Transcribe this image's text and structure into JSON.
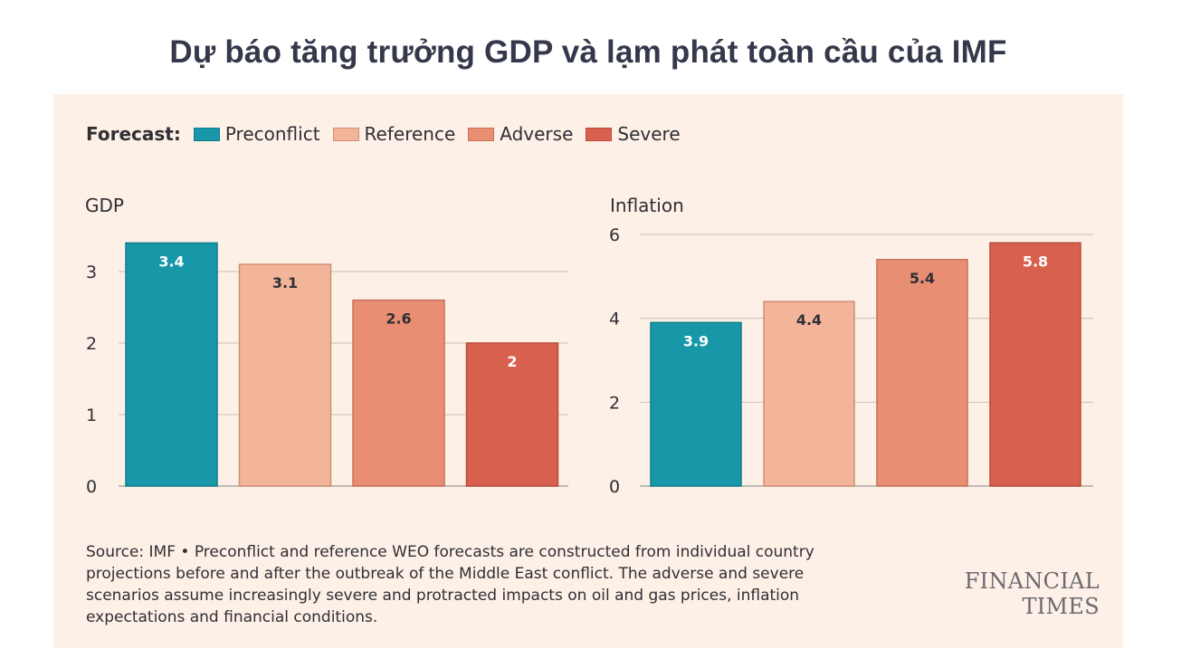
{
  "title": "Dự báo tăng trưởng GDP và lạm phát toàn cầu của IMF",
  "legend": {
    "title": "Forecast:",
    "items": [
      {
        "label": "Preconflict",
        "color": "#1897a8",
        "stroke": "#0f7f8f"
      },
      {
        "label": "Reference",
        "color": "#f2b59a",
        "stroke": "#cf8f75"
      },
      {
        "label": "Adverse",
        "color": "#e88e72",
        "stroke": "#c8705a"
      },
      {
        "label": "Severe",
        "color": "#d8604e",
        "stroke": "#b84a3a"
      }
    ]
  },
  "chart_data": [
    {
      "type": "bar",
      "title": "GDP",
      "categories": [
        "Preconflict",
        "Reference",
        "Adverse",
        "Severe"
      ],
      "values": [
        3.4,
        3.1,
        2.6,
        2
      ],
      "value_labels": [
        "3.4",
        "3.1",
        "2.6",
        "2"
      ],
      "yticks": [
        0,
        1,
        2,
        3
      ],
      "ylim": [
        0,
        3.5
      ],
      "label_colors": [
        "#ffffff",
        "#2f2f35",
        "#2f2f35",
        "#ffffff"
      ]
    },
    {
      "type": "bar",
      "title": "Inflation",
      "categories": [
        "Preconflict",
        "Reference",
        "Adverse",
        "Severe"
      ],
      "values": [
        3.9,
        4.4,
        5.4,
        5.8
      ],
      "value_labels": [
        "3.9",
        "4.4",
        "5.4",
        "5.8"
      ],
      "yticks": [
        0,
        2,
        4,
        6
      ],
      "ylim": [
        0,
        6
      ],
      "label_colors": [
        "#ffffff",
        "#2f2f35",
        "#2f2f35",
        "#ffffff"
      ]
    }
  ],
  "source_text": "Source: IMF • Preconflict and reference WEO forecasts are constructed from individual country projections before and after the outbreak of the Middle East conflict. The adverse and severe scenarios assume increasingly severe and protracted impacts on oil and gas prices, inflation expectations and financial conditions.",
  "brand": "FINANCIAL TIMES"
}
